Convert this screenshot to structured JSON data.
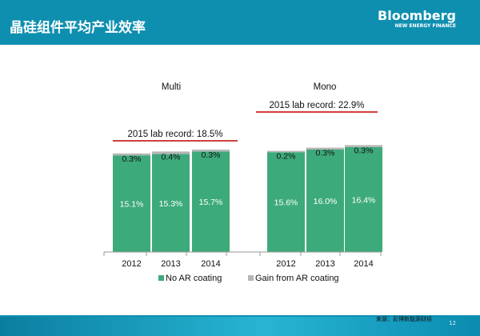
{
  "header": {
    "title": "晶硅组件平均产业效率"
  },
  "brand": {
    "name": "Bloomberg",
    "subtitle": "NEW ENERGY FINANCE"
  },
  "footer": {
    "source": "来源：彭博新能源财经",
    "page_number": "12"
  },
  "colors": {
    "base": "#3daa7b",
    "gain": "#b5b5b5",
    "record_line": "#c00000",
    "header_bg": "#0f8fb0"
  },
  "chart_data": {
    "type": "bar",
    "stacked": true,
    "groups": [
      {
        "label": "Multi",
        "record_label": "2015 lab record: 18.5%",
        "record_value": 18.5
      },
      {
        "label": "Mono",
        "record_label": "2015 lab record: 22.9%",
        "record_value": 22.9
      }
    ],
    "categories": [
      "2012",
      "2013",
      "2014",
      "2012",
      "2013",
      "2014"
    ],
    "group_index": [
      0,
      0,
      0,
      1,
      1,
      1
    ],
    "series": [
      {
        "name": "No AR coating",
        "values": [
          15.1,
          15.3,
          15.7,
          15.6,
          16.0,
          16.4
        ],
        "labels": [
          "15.1%",
          "15.3%",
          "15.7%",
          "15.6%",
          "16.0%",
          "16.4%"
        ]
      },
      {
        "name": "Gain from AR coating",
        "values": [
          0.3,
          0.4,
          0.3,
          0.2,
          0.3,
          0.3
        ],
        "labels": [
          "0.3%",
          "0.4%",
          "0.3%",
          "0.2%",
          "0.3%",
          "0.3%"
        ]
      }
    ],
    "ylim": [
      0,
      25
    ],
    "legend_position": "bottom",
    "grid": false
  }
}
